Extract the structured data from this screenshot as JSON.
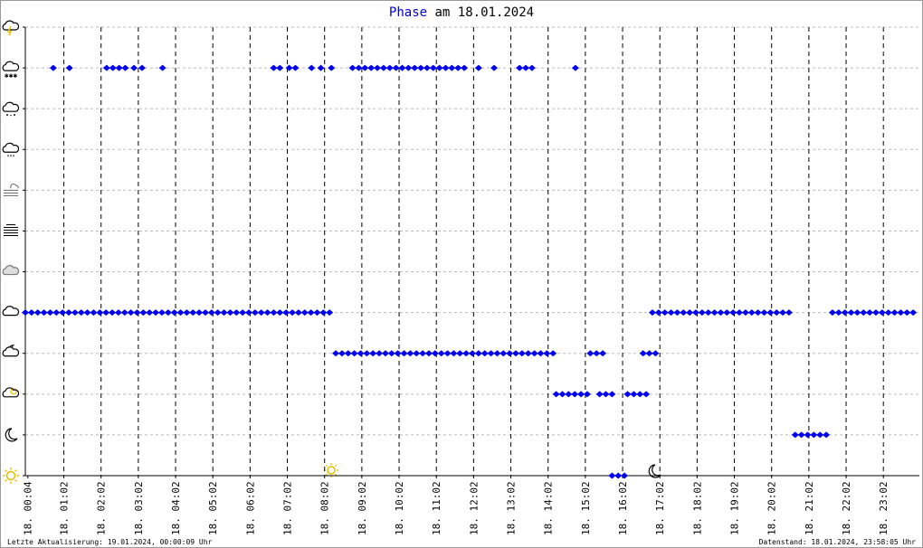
{
  "chart_data": {
    "type": "scatter",
    "title": {
      "highlight": "Phase",
      "rest": "am 18.01.2024"
    },
    "footer_left": "Letzte Aktualisierung: 19.01.2024, 00:00:09 Uhr",
    "footer_right": "Datenstand: 18.01.2024, 23:58:05 Uhr",
    "color": "#0000ee",
    "grid": true,
    "xlim": [
      0,
      1440
    ],
    "ylim": [
      0,
      11
    ],
    "yticks": [
      0,
      1,
      2,
      3,
      4,
      5,
      6,
      7,
      8,
      9,
      10,
      11
    ],
    "xticks": [
      {
        "value": 4,
        "label": "18. 00:04"
      },
      {
        "value": 62,
        "label": "18. 01:02"
      },
      {
        "value": 122,
        "label": "18. 02:02"
      },
      {
        "value": 182,
        "label": "18. 03:02"
      },
      {
        "value": 242,
        "label": "18. 04:02"
      },
      {
        "value": 302,
        "label": "18. 05:02"
      },
      {
        "value": 362,
        "label": "18. 06:02"
      },
      {
        "value": 422,
        "label": "18. 07:02"
      },
      {
        "value": 482,
        "label": "18. 08:02"
      },
      {
        "value": 542,
        "label": "18. 09:02"
      },
      {
        "value": 602,
        "label": "18. 10:02"
      },
      {
        "value": 662,
        "label": "18. 11:02"
      },
      {
        "value": 722,
        "label": "18. 12:02"
      },
      {
        "value": 782,
        "label": "18. 13:02"
      },
      {
        "value": 842,
        "label": "18. 14:02"
      },
      {
        "value": 902,
        "label": "18. 15:02"
      },
      {
        "value": 962,
        "label": "18. 16:02"
      },
      {
        "value": 1022,
        "label": "18. 17:02"
      },
      {
        "value": 1082,
        "label": "18. 18:02"
      },
      {
        "value": 1142,
        "label": "18. 19:02"
      },
      {
        "value": 1202,
        "label": "18. 20:02"
      },
      {
        "value": 1262,
        "label": "18. 21:02"
      },
      {
        "value": 1322,
        "label": "18. 22:02"
      },
      {
        "value": 1382,
        "label": "18. 23:02"
      }
    ],
    "x": [
      0,
      10,
      20,
      30,
      40,
      50,
      60,
      70,
      80,
      90,
      100,
      110,
      120,
      130,
      140,
      150,
      160,
      170,
      180,
      190,
      200,
      210,
      220,
      230,
      240,
      250,
      260,
      270,
      280,
      290,
      300,
      310,
      320,
      330,
      340,
      350,
      360,
      370,
      380,
      390,
      400,
      410,
      420,
      430,
      440,
      450,
      460,
      470,
      480,
      490,
      1010,
      1020,
      1030,
      1040,
      1050,
      1060,
      1070,
      1080,
      1090,
      1100,
      1110,
      1120,
      1130,
      1140,
      1150,
      1160,
      1170,
      1180,
      1190,
      1200,
      1210,
      1220,
      1230,
      1300,
      1310,
      1320,
      1330,
      1340,
      1350,
      1360,
      1370,
      1380,
      1390,
      1400,
      1410,
      1420,
      1430,
      500,
      510,
      520,
      530,
      540,
      550,
      560,
      570,
      580,
      590,
      600,
      610,
      620,
      630,
      640,
      650,
      660,
      670,
      680,
      690,
      700,
      710,
      720,
      730,
      740,
      750,
      760,
      770,
      780,
      790,
      800,
      810,
      820,
      830,
      840,
      850,
      910,
      920,
      930,
      995,
      1005,
      1015,
      855,
      865,
      875,
      885,
      895,
      905,
      925,
      935,
      945,
      970,
      980,
      990,
      1000,
      1240,
      1250,
      1260,
      1270,
      1280,
      1290,
      945,
      955,
      965,
      45,
      71,
      131,
      141,
      151,
      161,
      175,
      188,
      221,
      400,
      410,
      425,
      435,
      461,
      476,
      493,
      527,
      537,
      547,
      557,
      567,
      577,
      587,
      597,
      607,
      617,
      627,
      637,
      647,
      657,
      667,
      677,
      687,
      697,
      707,
      730,
      755,
      796,
      806,
      816,
      886
    ],
    "values": [
      4,
      4,
      4,
      4,
      4,
      4,
      4,
      4,
      4,
      4,
      4,
      4,
      4,
      4,
      4,
      4,
      4,
      4,
      4,
      4,
      4,
      4,
      4,
      4,
      4,
      4,
      4,
      4,
      4,
      4,
      4,
      4,
      4,
      4,
      4,
      4,
      4,
      4,
      4,
      4,
      4,
      4,
      4,
      4,
      4,
      4,
      4,
      4,
      4,
      4,
      4,
      4,
      4,
      4,
      4,
      4,
      4,
      4,
      4,
      4,
      4,
      4,
      4,
      4,
      4,
      4,
      4,
      4,
      4,
      4,
      4,
      4,
      4,
      4,
      4,
      4,
      4,
      4,
      4,
      4,
      4,
      4,
      4,
      4,
      4,
      4,
      4,
      3,
      3,
      3,
      3,
      3,
      3,
      3,
      3,
      3,
      3,
      3,
      3,
      3,
      3,
      3,
      3,
      3,
      3,
      3,
      3,
      3,
      3,
      3,
      3,
      3,
      3,
      3,
      3,
      3,
      3,
      3,
      3,
      3,
      3,
      3,
      3,
      3,
      3,
      3,
      3,
      3,
      3,
      2,
      2,
      2,
      2,
      2,
      2,
      2,
      2,
      2,
      2,
      2,
      2,
      2,
      1,
      1,
      1,
      1,
      1,
      1,
      0,
      0,
      0,
      10,
      10,
      10,
      10,
      10,
      10,
      10,
      10,
      10,
      10,
      10,
      10,
      10,
      10,
      10,
      10,
      10,
      10,
      10,
      10,
      10,
      10,
      10,
      10,
      10,
      10,
      10,
      10,
      10,
      10,
      10,
      10,
      10,
      10,
      10,
      10,
      10,
      10,
      10,
      10,
      10
    ]
  }
}
